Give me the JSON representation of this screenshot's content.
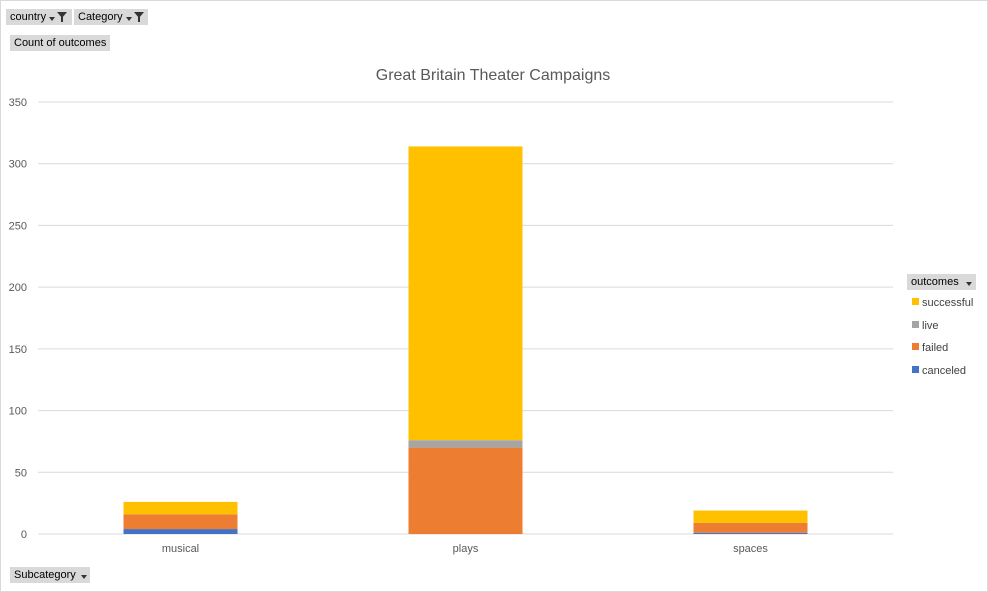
{
  "filters": {
    "country_label": "country",
    "category_label": "Category",
    "values_label": "Count of outcomes",
    "axis_field_label": "Subcategory",
    "legend_field_label": "outcomes"
  },
  "chart_data": {
    "type": "bar",
    "stacked": true,
    "title": "Great Britain Theater Campaigns",
    "xlabel": "",
    "ylabel": "",
    "categories": [
      "musical",
      "plays",
      "spaces"
    ],
    "ylim": [
      0,
      350
    ],
    "yticks": [
      0,
      50,
      100,
      150,
      200,
      250,
      300,
      350
    ],
    "grid": true,
    "legend_position": "right",
    "series": [
      {
        "name": "canceled",
        "color": "#4472c4",
        "values": [
          4,
          0,
          1
        ]
      },
      {
        "name": "failed",
        "color": "#ed7d31",
        "values": [
          12,
          70,
          8
        ]
      },
      {
        "name": "live",
        "color": "#a5a5a5",
        "values": [
          0,
          6,
          0
        ]
      },
      {
        "name": "successful",
        "color": "#ffc000",
        "values": [
          10,
          238,
          10
        ]
      }
    ]
  }
}
